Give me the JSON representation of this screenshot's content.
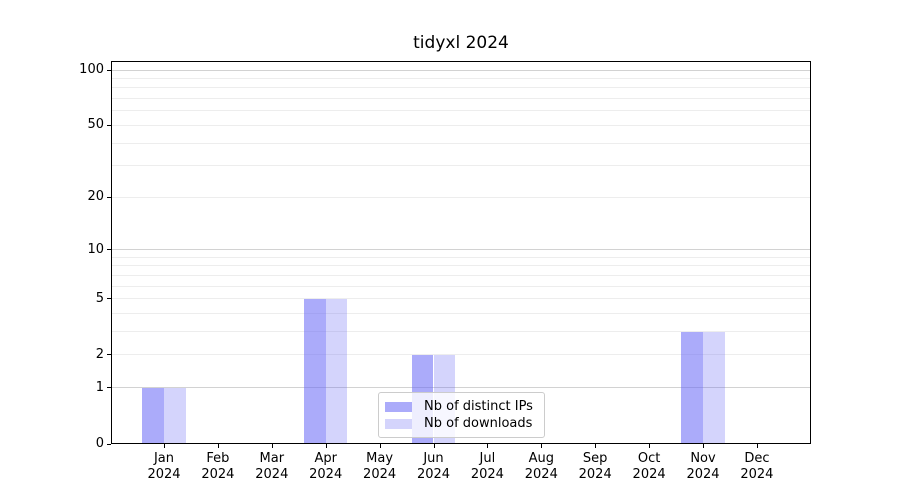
{
  "chart_data": {
    "type": "bar",
    "title": "tidyxl 2024",
    "categories": [
      {
        "month": "Jan",
        "year": "2024"
      },
      {
        "month": "Feb",
        "year": "2024"
      },
      {
        "month": "Mar",
        "year": "2024"
      },
      {
        "month": "Apr",
        "year": "2024"
      },
      {
        "month": "May",
        "year": "2024"
      },
      {
        "month": "Jun",
        "year": "2024"
      },
      {
        "month": "Jul",
        "year": "2024"
      },
      {
        "month": "Aug",
        "year": "2024"
      },
      {
        "month": "Sep",
        "year": "2024"
      },
      {
        "month": "Oct",
        "year": "2024"
      },
      {
        "month": "Nov",
        "year": "2024"
      },
      {
        "month": "Dec",
        "year": "2024"
      }
    ],
    "series": [
      {
        "name": "Nb of distinct IPs",
        "color": "rgba(102,102,245,0.55)",
        "values": [
          1,
          0,
          0,
          5,
          0,
          2,
          0,
          0,
          0,
          0,
          3,
          0
        ]
      },
      {
        "name": "Nb of downloads",
        "color": "rgba(102,102,245,0.28)",
        "values": [
          1,
          0,
          0,
          5,
          0,
          2,
          0,
          0,
          0,
          0,
          3,
          0
        ]
      }
    ],
    "yscale": "log1p",
    "ylim": [
      0,
      112
    ],
    "yticks": [
      0,
      1,
      2,
      5,
      10,
      20,
      50,
      100
    ],
    "major_gridlines": [
      1,
      10,
      100
    ],
    "minor_gridlines": [
      2,
      3,
      4,
      5,
      6,
      7,
      8,
      9,
      20,
      30,
      40,
      50,
      60,
      70,
      80,
      90
    ],
    "grid": true,
    "legend_position": "lower-center",
    "grid_minor_color": "#ededed",
    "grid_major_color": "#d2d2d2",
    "axis_color": "#000000"
  }
}
